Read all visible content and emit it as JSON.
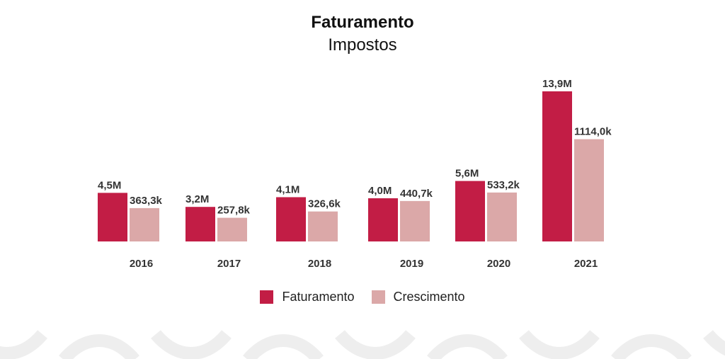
{
  "chart_data": {
    "type": "bar",
    "title": "Faturamento",
    "subtitle": "Impostos",
    "categories": [
      "2016",
      "2017",
      "2018",
      "2019",
      "2020",
      "2021"
    ],
    "series": [
      {
        "name": "Faturamento",
        "values": [
          4500000,
          3200000,
          4100000,
          4000000,
          5600000,
          13900000
        ],
        "labels": [
          "4,5M",
          "3,2M",
          "4,1M",
          "4,0M",
          "5,6M",
          "13,9M"
        ],
        "color": "#c21d45"
      },
      {
        "name": "Crescimento",
        "values": [
          363300,
          257800,
          326600,
          440700,
          533200,
          1114000
        ],
        "labels": [
          "363,3k",
          "257,8k",
          "326,6k",
          "440,7k",
          "533,2k",
          "1114,0k"
        ],
        "color": "#dba8a8"
      }
    ],
    "legend_position": "bottom",
    "grid": false
  },
  "colors": {
    "primary": "#c21d45",
    "secondary": "#dba8a8",
    "decor": "#eeeeee"
  }
}
